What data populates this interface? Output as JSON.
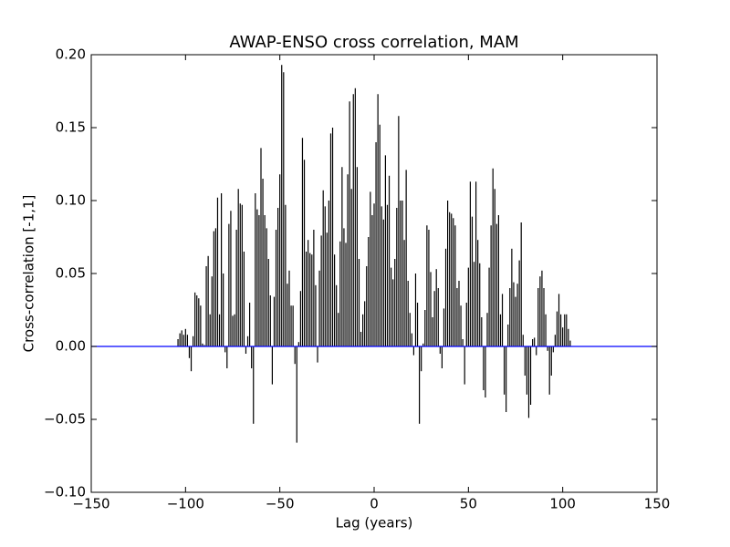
{
  "chart_data": {
    "type": "stem",
    "title": "AWAP-ENSO cross correlation, MAM",
    "xlabel": "Lag (years)",
    "ylabel": "Cross-correlation [-1,1]",
    "x": [
      -104,
      -103,
      -102,
      -101,
      -100,
      -99,
      -98,
      -97,
      -96,
      -95,
      -94,
      -93,
      -92,
      -91,
      -90,
      -89,
      -88,
      -87,
      -86,
      -85,
      -84,
      -83,
      -82,
      -81,
      -80,
      -79,
      -78,
      -77,
      -76,
      -75,
      -74,
      -73,
      -72,
      -71,
      -70,
      -69,
      -68,
      -67,
      -66,
      -65,
      -64,
      -63,
      -62,
      -61,
      -60,
      -59,
      -58,
      -57,
      -56,
      -55,
      -54,
      -53,
      -52,
      -51,
      -50,
      -49,
      -48,
      -47,
      -46,
      -45,
      -44,
      -43,
      -42,
      -41,
      -40,
      -39,
      -38,
      -37,
      -36,
      -35,
      -34,
      -33,
      -32,
      -31,
      -30,
      -29,
      -28,
      -27,
      -26,
      -25,
      -24,
      -23,
      -22,
      -21,
      -20,
      -19,
      -18,
      -17,
      -16,
      -15,
      -14,
      -13,
      -12,
      -11,
      -10,
      -9,
      -8,
      -7,
      -6,
      -5,
      -4,
      -3,
      -2,
      -1,
      0,
      1,
      2,
      3,
      4,
      5,
      6,
      7,
      8,
      9,
      10,
      11,
      12,
      13,
      14,
      15,
      16,
      17,
      18,
      19,
      20,
      21,
      22,
      23,
      24,
      25,
      26,
      27,
      28,
      29,
      30,
      31,
      32,
      33,
      34,
      35,
      36,
      37,
      38,
      39,
      40,
      41,
      42,
      43,
      44,
      45,
      46,
      47,
      48,
      49,
      50,
      51,
      52,
      53,
      54,
      55,
      56,
      57,
      58,
      59,
      60,
      61,
      62,
      63,
      64,
      65,
      66,
      67,
      68,
      69,
      70,
      71,
      72,
      73,
      74,
      75,
      76,
      77,
      78,
      79,
      80,
      81,
      82,
      83,
      84,
      85,
      86,
      87,
      88,
      89,
      90,
      91,
      92,
      93,
      94,
      95,
      96,
      97,
      98,
      99,
      100,
      101,
      102,
      103,
      104
    ],
    "values": [
      0.005,
      0.009,
      0.011,
      0.008,
      0.012,
      0.008,
      -0.008,
      -0.017,
      0.007,
      0.037,
      0.035,
      0.033,
      0.028,
      0.002,
      0.001,
      0.055,
      0.062,
      0.022,
      0.048,
      0.079,
      0.081,
      0.102,
      0.022,
      0.105,
      0.05,
      -0.004,
      -0.015,
      0.084,
      0.093,
      0.021,
      0.022,
      0.08,
      0.108,
      0.098,
      0.097,
      0.065,
      -0.005,
      0.007,
      0.03,
      -0.015,
      -0.053,
      0.105,
      0.094,
      0.09,
      0.136,
      0.115,
      0.09,
      0.081,
      0.06,
      0.035,
      -0.026,
      0.034,
      0.08,
      0.095,
      0.118,
      0.193,
      0.188,
      0.097,
      0.043,
      0.052,
      0.028,
      0.028,
      -0.012,
      -0.066,
      0.003,
      0.038,
      0.143,
      0.128,
      0.065,
      0.073,
      0.064,
      0.063,
      0.08,
      0.042,
      -0.011,
      0.052,
      0.076,
      0.107,
      0.096,
      0.078,
      0.1,
      0.146,
      0.15,
      0.063,
      0.042,
      0.023,
      0.072,
      0.123,
      0.081,
      0.071,
      0.118,
      0.168,
      0.108,
      0.173,
      0.177,
      0.123,
      0.06,
      0.01,
      0.022,
      0.031,
      0.055,
      0.075,
      0.106,
      0.09,
      0.098,
      0.14,
      0.173,
      0.152,
      0.096,
      0.087,
      0.131,
      0.097,
      0.117,
      0.054,
      0.046,
      0.06,
      0.095,
      0.158,
      0.1,
      0.1,
      0.073,
      0.121,
      0.045,
      0.023,
      0.009,
      -0.006,
      0.05,
      0.03,
      -0.053,
      -0.017,
      0.002,
      0.025,
      0.083,
      0.08,
      0.051,
      0.02,
      0.038,
      0.053,
      0.04,
      -0.005,
      -0.015,
      0.026,
      0.067,
      0.1,
      0.092,
      0.091,
      0.088,
      0.083,
      0.04,
      0.045,
      0.028,
      0.005,
      -0.026,
      0.03,
      0.054,
      0.113,
      0.089,
      0.058,
      0.113,
      0.073,
      0.057,
      0.02,
      -0.03,
      -0.035,
      0.023,
      0.054,
      0.083,
      0.122,
      0.108,
      0.084,
      0.09,
      0.022,
      0.036,
      -0.033,
      -0.045,
      0.015,
      0.04,
      0.067,
      0.044,
      0.034,
      0.043,
      0.059,
      0.085,
      0.008,
      -0.02,
      -0.033,
      -0.049,
      -0.04,
      0.005,
      0.006,
      -0.006,
      0.04,
      0.048,
      0.052,
      0.04,
      0.022,
      -0.003,
      -0.033,
      -0.02,
      -0.004,
      0.008,
      0.024,
      0.036,
      0.022,
      0.013,
      0.022,
      0.022,
      0.012,
      0.004
    ],
    "color": "#000000",
    "baseline_color": "#0000ff",
    "xlim": [
      -150,
      150
    ],
    "xticks": [
      {
        "value": -150,
        "label": "−150"
      },
      {
        "value": -100,
        "label": "−100"
      },
      {
        "value": -50,
        "label": "−50"
      },
      0,
      50,
      100,
      150
    ],
    "ylim": [
      -0.1,
      0.2
    ],
    "yticks": [
      {
        "value": -0.1,
        "label": "−0.10"
      },
      {
        "value": -0.05,
        "label": "−0.05"
      },
      {
        "value": 0,
        "label": "0.00"
      },
      {
        "value": 0.05,
        "label": "0.05"
      },
      {
        "value": 0.1,
        "label": "0.10"
      },
      {
        "value": 0.15,
        "label": "0.15"
      },
      {
        "value": 0.2,
        "label": "0.20"
      }
    ],
    "grid": false
  }
}
